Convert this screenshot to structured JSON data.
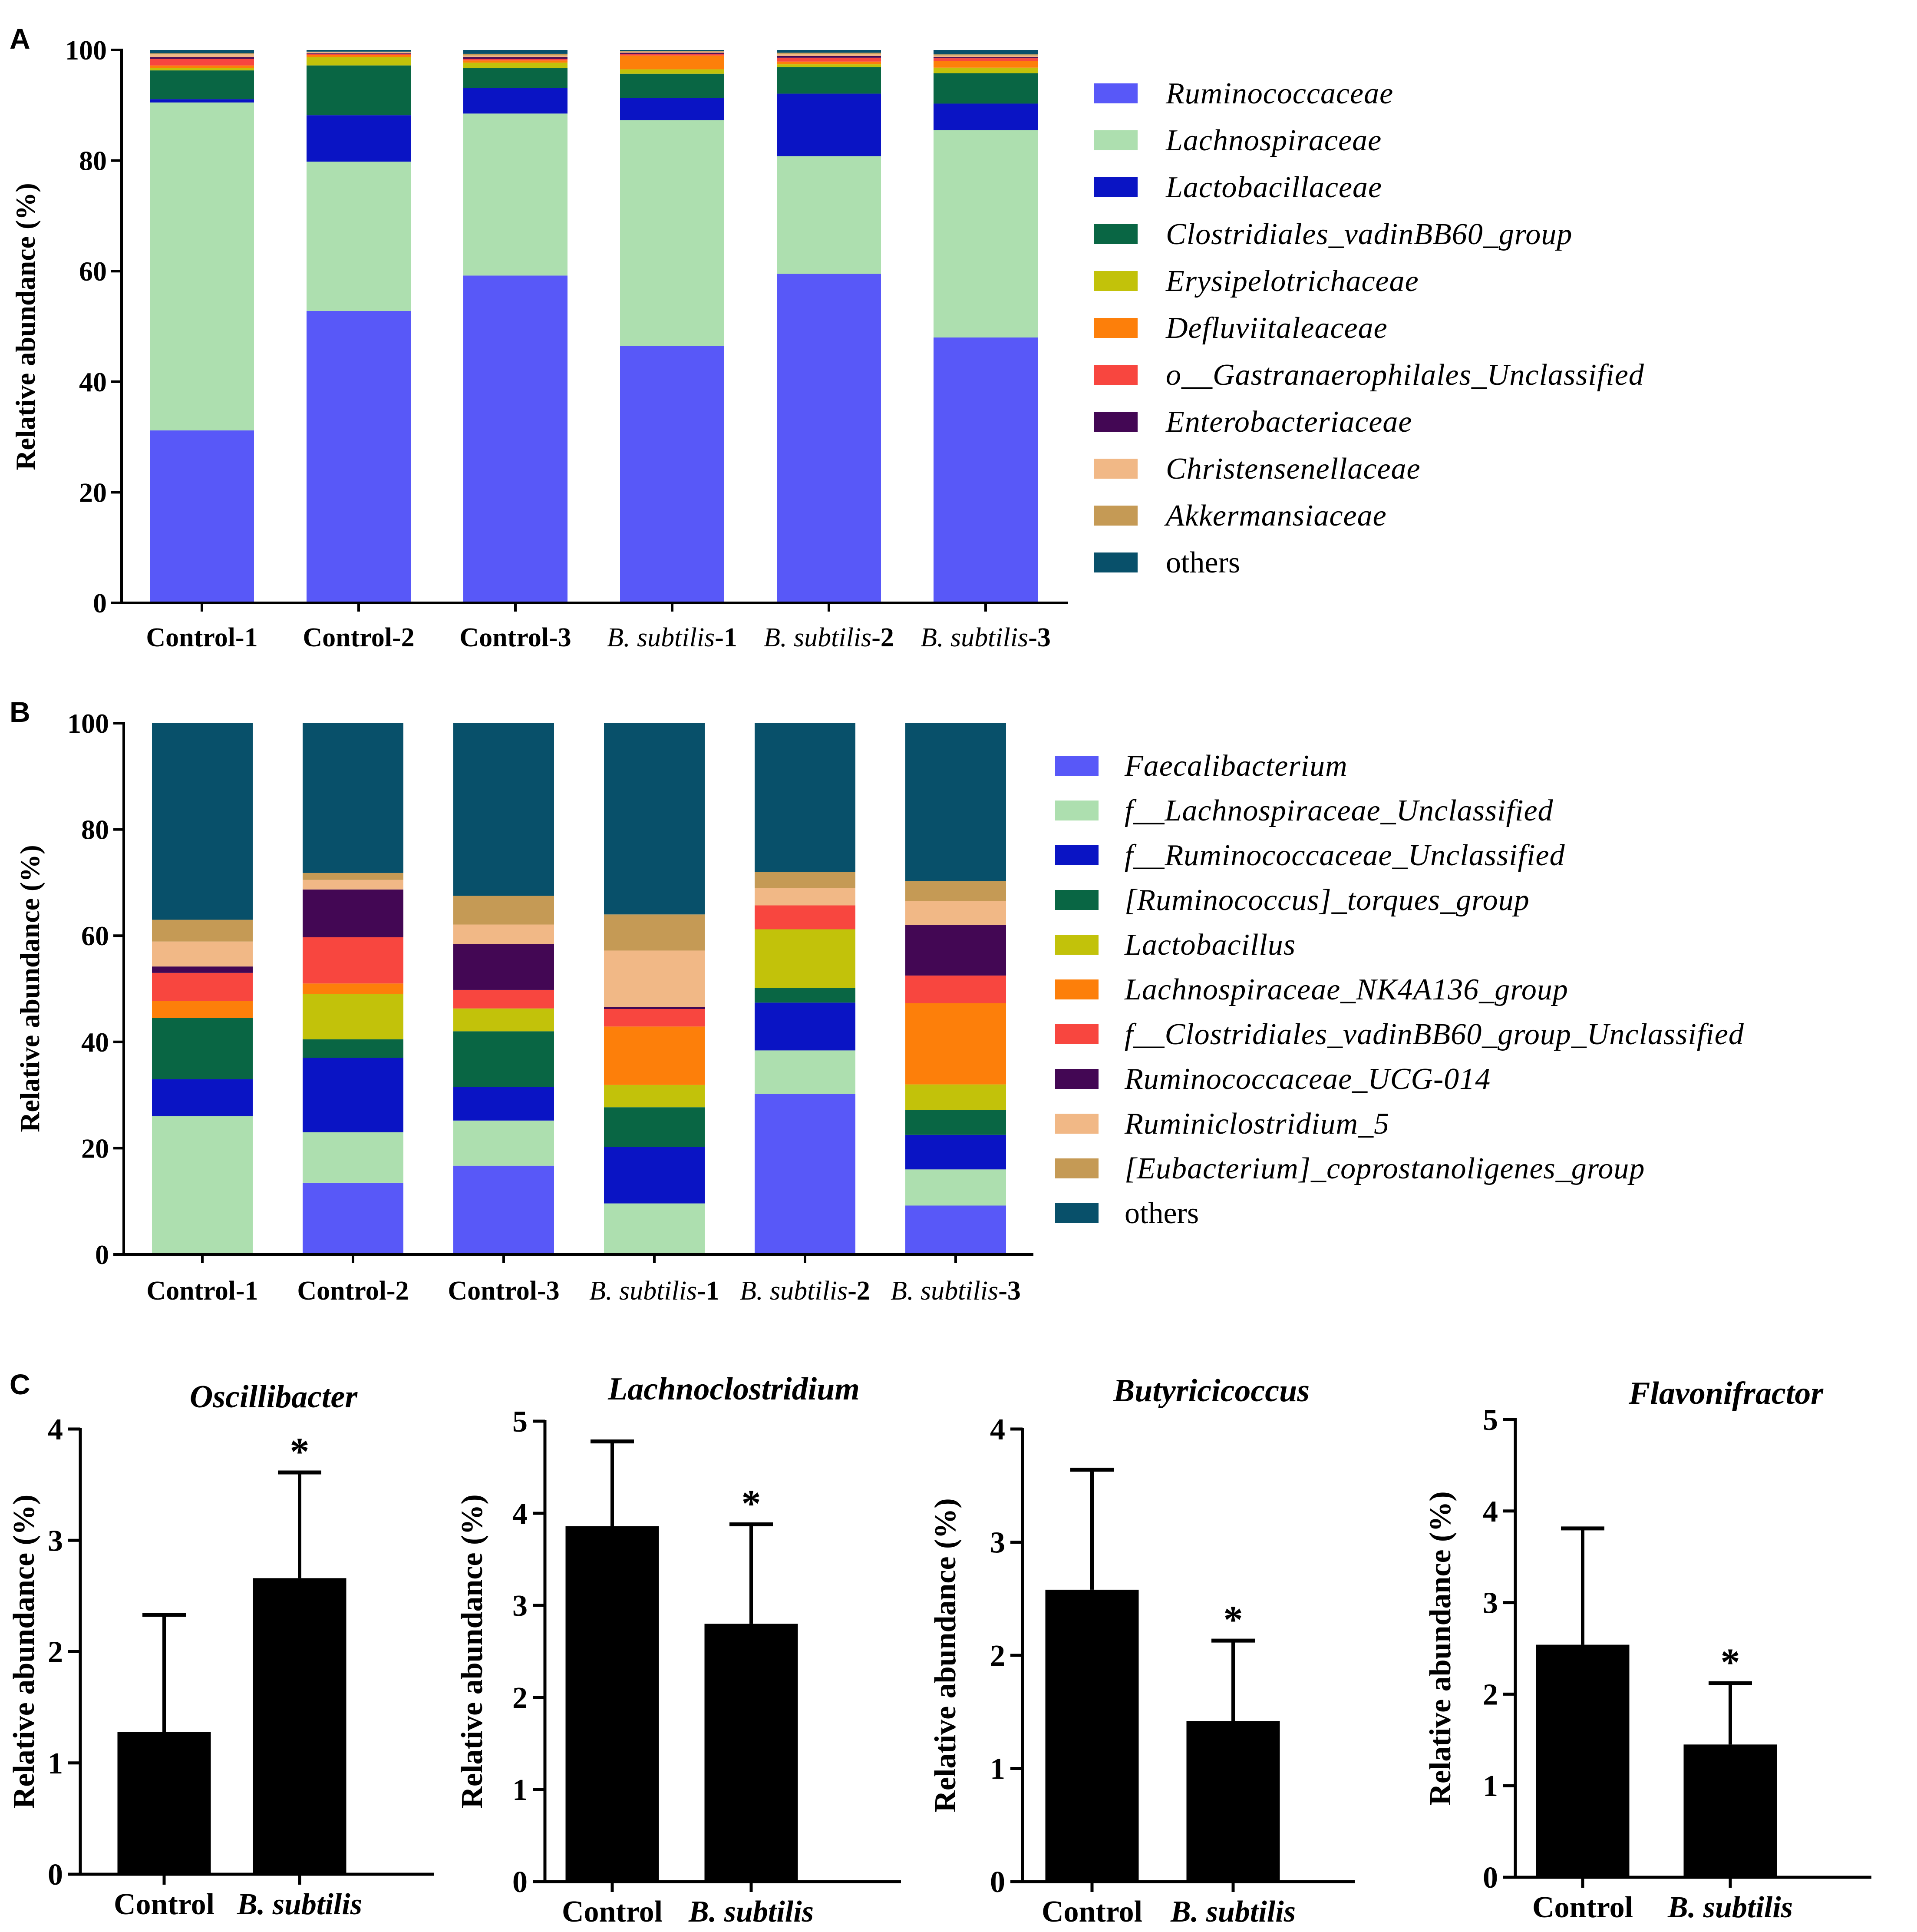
{
  "panels": {
    "A": "A",
    "B": "B",
    "C": "C"
  },
  "stacked_charts": [
    {
      "id": "A",
      "type": "bar",
      "stacked": true,
      "ylabel": "Relative abundance (%)",
      "ylim": [
        0,
        100
      ],
      "yticks": [
        "0",
        "20",
        "40",
        "60",
        "80",
        "100"
      ],
      "categories": [
        {
          "prefix": "Control-1",
          "suffix": ""
        },
        {
          "prefix": "Control-2",
          "suffix": ""
        },
        {
          "prefix": "Control-3",
          "suffix": ""
        },
        {
          "prefix": "B. subtilis",
          "suffix": "-1"
        },
        {
          "prefix": "B. subtilis",
          "suffix": "-2"
        },
        {
          "prefix": "B. subtilis",
          "suffix": "-3"
        }
      ],
      "series": [
        {
          "name": "Ruminococcaceae",
          "color": "#5858f8",
          "values": [
            31.2,
            52.8,
            59.2,
            46.5,
            59.5,
            48.0
          ]
        },
        {
          "name": "Lachnospiraceae",
          "color": "#addfaf",
          "values": [
            59.3,
            27.0,
            29.3,
            40.8,
            21.3,
            37.5
          ]
        },
        {
          "name": "Lactobacillaceae",
          "color": "#0a14c4",
          "values": [
            0.6,
            8.4,
            4.6,
            4.0,
            11.3,
            4.8
          ]
        },
        {
          "name": "Clostridiales_vadinBB60_group",
          "color": "#096644",
          "values": [
            5.2,
            9.0,
            3.6,
            4.4,
            4.8,
            5.5
          ]
        },
        {
          "name": "Erysipelotrichaceae",
          "color": "#c2c20a",
          "values": [
            0.4,
            1.5,
            1.0,
            0.8,
            0.5,
            1.0
          ]
        },
        {
          "name": "Defluviitaleaceae",
          "color": "#fd7f0a",
          "values": [
            0.5,
            0.4,
            0.4,
            2.5,
            0.5,
            1.2
          ]
        },
        {
          "name": "o__Gastranaerophilales_Unclassified",
          "color": "#f8463f",
          "values": [
            1.2,
            0.2,
            0.3,
            0.3,
            0.7,
            0.5
          ]
        },
        {
          "name": "Enterobacteriaceae",
          "color": "#430754",
          "values": [
            0.3,
            0.1,
            0.3,
            0.2,
            0.3,
            0.2
          ]
        },
        {
          "name": "Christensenellaceae",
          "color": "#f1b886",
          "values": [
            0.5,
            0.2,
            0.3,
            0.2,
            0.4,
            0.3
          ]
        },
        {
          "name": "Akkermansiaceae",
          "color": "#c59a55",
          "values": [
            0.2,
            0.1,
            0.3,
            0.1,
            0.2,
            0.2
          ]
        },
        {
          "name": "others",
          "color": "#08506a",
          "values": [
            0.6,
            0.3,
            0.7,
            0.2,
            0.5,
            0.8
          ]
        }
      ]
    },
    {
      "id": "B",
      "type": "bar",
      "stacked": true,
      "ylabel": "Relative abundance (%)",
      "ylim": [
        0,
        100
      ],
      "yticks": [
        "0",
        "20",
        "40",
        "60",
        "80",
        "100"
      ],
      "categories": [
        {
          "prefix": "Control-1",
          "suffix": ""
        },
        {
          "prefix": "Control-2",
          "suffix": ""
        },
        {
          "prefix": "Control-3",
          "suffix": ""
        },
        {
          "prefix": "B. subtilis",
          "suffix": "-1"
        },
        {
          "prefix": "B. subtilis",
          "suffix": "-2"
        },
        {
          "prefix": "B. subtilis",
          "suffix": "-3"
        }
      ],
      "series": [
        {
          "name": "Faecalibacterium",
          "color": "#5858f8",
          "values": [
            0.0,
            13.5,
            16.7,
            0.0,
            30.2,
            9.2
          ]
        },
        {
          "name": "f__Lachnospiraceae_Unclassified",
          "color": "#addfaf",
          "values": [
            26.0,
            9.5,
            8.5,
            9.6,
            8.2,
            6.8
          ]
        },
        {
          "name": "f__Ruminococcaceae_Unclassified",
          "color": "#0a14c4",
          "values": [
            7.0,
            14.0,
            6.3,
            10.6,
            9.0,
            6.5
          ]
        },
        {
          "name": "[Ruminococcus]_torques_group",
          "color": "#096644",
          "values": [
            11.5,
            3.5,
            10.5,
            7.5,
            2.8,
            4.7
          ]
        },
        {
          "name": "Lactobacillus",
          "color": "#c2c20a",
          "values": [
            0.0,
            8.5,
            4.3,
            4.2,
            11.0,
            4.8
          ]
        },
        {
          "name": "Lachnospiraceae_NK4A136_group",
          "color": "#fd7f0a",
          "values": [
            3.2,
            2.0,
            0.0,
            11.0,
            0.0,
            15.3
          ]
        },
        {
          "name": "f__Clostridiales_vadinBB60_group_Unclassified",
          "color": "#f8463f",
          "values": [
            5.3,
            8.7,
            3.5,
            3.3,
            4.5,
            5.2
          ]
        },
        {
          "name": "Ruminococcaceae_UCG-014",
          "color": "#430754",
          "values": [
            1.2,
            9.0,
            8.6,
            0.4,
            0.0,
            9.5
          ]
        },
        {
          "name": "Ruminiclostridium_5",
          "color": "#f1b886",
          "values": [
            4.7,
            1.8,
            3.7,
            10.6,
            3.3,
            4.5
          ]
        },
        {
          "name": "[Eubacterium]_coprostanoligenes_group",
          "color": "#c59a55",
          "values": [
            4.1,
            1.3,
            5.4,
            6.8,
            3.0,
            3.8
          ]
        },
        {
          "name": "others",
          "color": "#08506a",
          "values": [
            37.0,
            28.2,
            32.8,
            36.0,
            28.0,
            29.7
          ]
        }
      ]
    }
  ],
  "chart_data": [
    {
      "type": "bar",
      "title": "Oscillibacter",
      "ylabel": "Relative abundance (%)",
      "ylim": [
        0,
        4
      ],
      "yticks": [
        "0",
        "1",
        "2",
        "3",
        "4"
      ],
      "categories": [
        "Control",
        "B. subtilis"
      ],
      "values": [
        1.28,
        2.66
      ],
      "error": [
        1.05,
        0.95
      ],
      "significance": [
        "",
        "*"
      ]
    },
    {
      "type": "bar",
      "title": "Lachnoclostridium",
      "ylabel": "Relative abundance (%)",
      "ylim": [
        0,
        5
      ],
      "yticks": [
        "0",
        "1",
        "2",
        "3",
        "4",
        "5"
      ],
      "categories": [
        "Control",
        "B. subtilis"
      ],
      "values": [
        3.86,
        2.8
      ],
      "error": [
        0.92,
        1.08
      ],
      "significance": [
        "",
        "*"
      ]
    },
    {
      "type": "bar",
      "title": "Butyricicoccus",
      "ylabel": "Relative abundance (%)",
      "ylim": [
        0,
        4
      ],
      "yticks": [
        "0",
        "1",
        "2",
        "3",
        "4"
      ],
      "categories": [
        "Control",
        "B. subtilis"
      ],
      "values": [
        2.58,
        1.42
      ],
      "error": [
        1.06,
        0.71
      ],
      "significance": [
        "",
        "*"
      ]
    },
    {
      "type": "bar",
      "title": "Flavonifractor",
      "ylabel": "Relative abundance (%)",
      "ylim": [
        0,
        5
      ],
      "yticks": [
        "0",
        "1",
        "2",
        "3",
        "4",
        "5"
      ],
      "categories": [
        "Control",
        "B. subtilis"
      ],
      "values": [
        2.54,
        1.45
      ],
      "error": [
        1.27,
        0.67
      ],
      "significance": [
        "",
        "*"
      ]
    }
  ]
}
